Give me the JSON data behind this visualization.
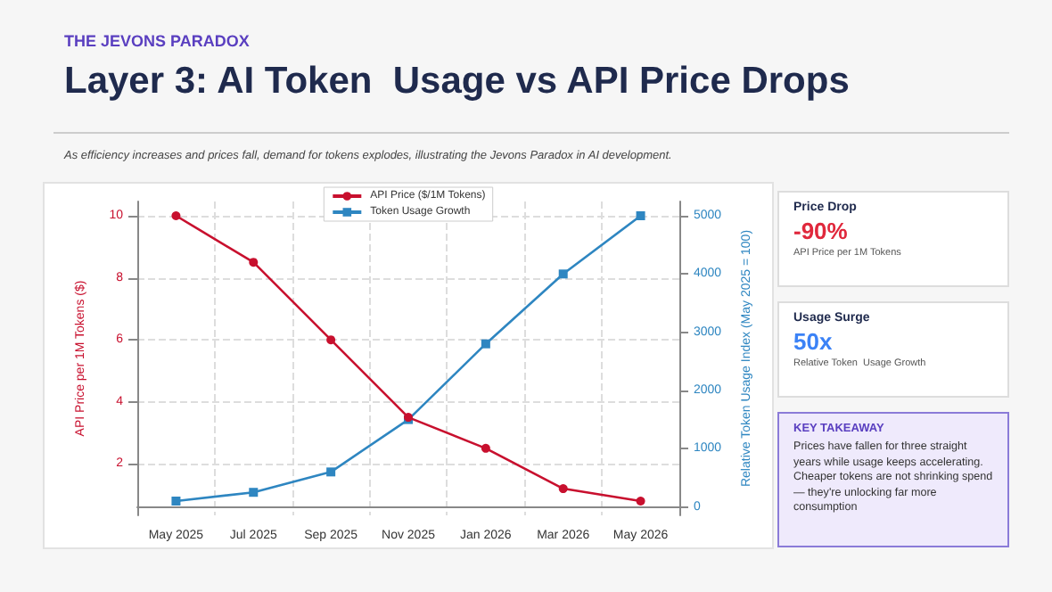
{
  "chart_data": {
    "type": "line",
    "title": "Layer 3: AI Token  Usage vs API Price Drops",
    "subtitle": "As efficiency increases and prices fall, demand for tokens explodes, illustrating the Jevons Paradox in AI development.",
    "ylabel": "API Price per 1M Tokens ($)",
    "y2label": "Relative Token Usage Index (May 2025 = 100)",
    "categories": [
      "May 2025",
      "Jul 2025",
      "Sep 2025",
      "Nov 2025",
      "Jan 2026",
      "Mar 2026",
      "May 2026"
    ],
    "series": [
      {
        "name": "API Price ($/1M Tokens)",
        "color": "#c8102e",
        "marker": "circle",
        "values": [
          10,
          8.5,
          6,
          3.5,
          2.5,
          1.2,
          0.8
        ]
      },
      {
        "name": "Token Usage Growth",
        "color": "#2e86c1",
        "marker": "square",
        "axis": "y2",
        "values": [
          100,
          250,
          600,
          1500,
          2800,
          4000,
          5000
        ]
      }
    ],
    "ylim": [
      0.34,
      10.46
    ],
    "yticks": [
      2,
      4,
      6,
      8,
      10
    ],
    "y2lim": [
      -145,
      5245
    ],
    "y2ticks": [
      0,
      1000,
      2000,
      3000,
      4000,
      5000
    ],
    "grid": true,
    "legend": "top",
    "line_style": "solid",
    "annotations": [
      "THE JEVONS PARADOX",
      "Price Drop",
      "-90%",
      "API Price per 1M Tokens",
      "Usage Surge",
      "50x",
      "Relative Token  Usage Growth",
      "KEY TAKEAWAY",
      "Prices have fallen for three straight years while usage keeps accelerating. Cheaper tokens are not shrinking spend — they're unlocking far more consumption"
    ]
  }
}
